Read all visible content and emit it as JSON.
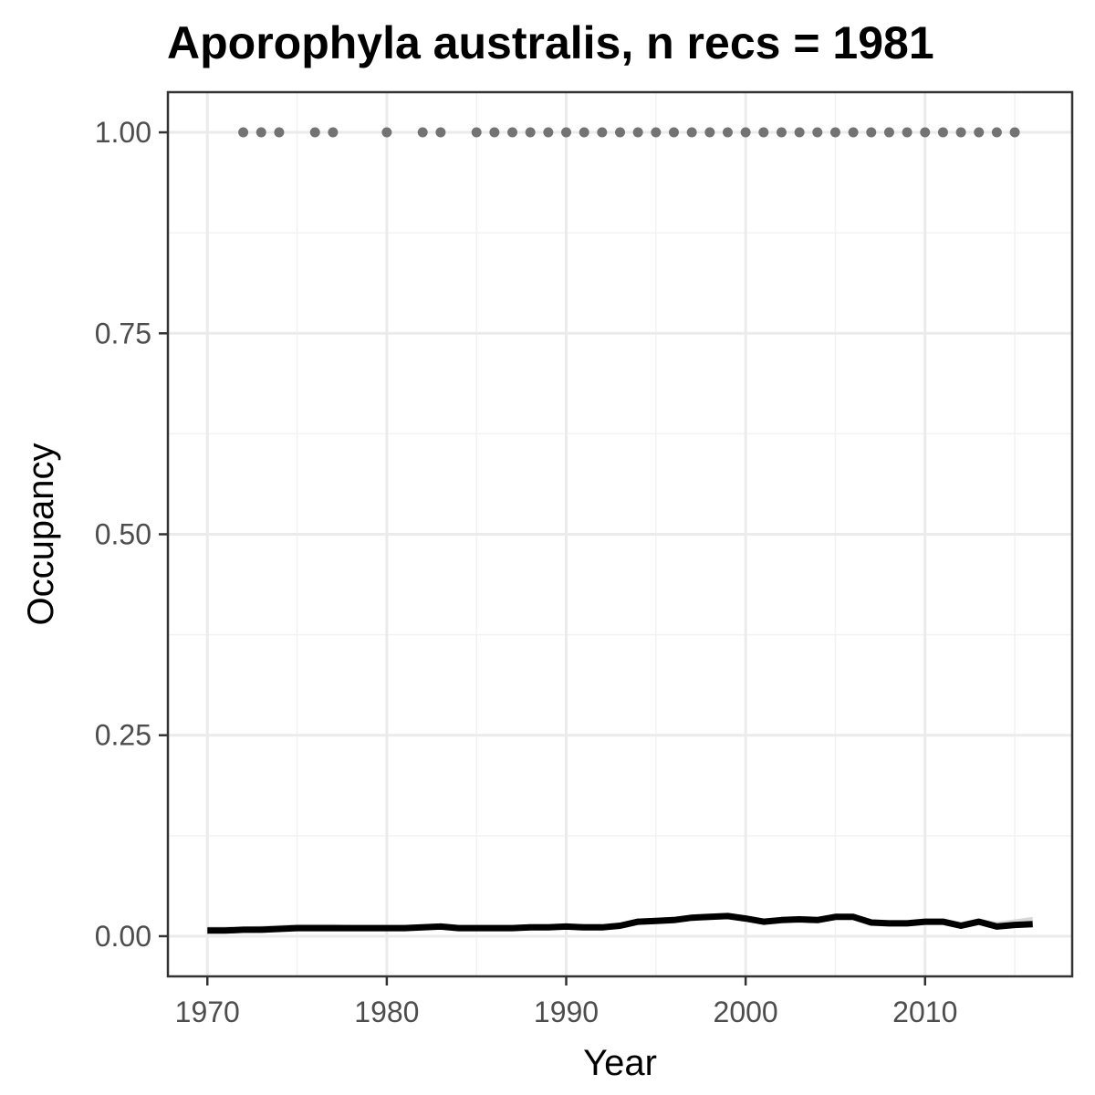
{
  "chart_data": {
    "type": "line",
    "title": "Aporophyla australis, n recs = 1981",
    "xlabel": "Year",
    "ylabel": "Occupancy",
    "xlim": [
      1967.8,
      2018.2
    ],
    "ylim": [
      -0.05,
      1.05
    ],
    "x_ticks": [
      1970,
      1980,
      1990,
      2000,
      2010
    ],
    "x_tick_labels": [
      "1970",
      "1980",
      "1990",
      "2000",
      "2010"
    ],
    "x_minor_ticks": [
      1975,
      1985,
      1995,
      2005,
      2015
    ],
    "y_ticks": [
      0,
      0.25,
      0.5,
      0.75,
      1.0
    ],
    "y_tick_labels": [
      "0.00",
      "0.25",
      "0.50",
      "0.75",
      "1.00"
    ],
    "y_minor_ticks": [
      0.125,
      0.375,
      0.625,
      0.875
    ],
    "grid": true,
    "colors": {
      "line": "#000000",
      "ribbon": "#bebebe",
      "points": "#737373"
    },
    "series": [
      {
        "type": "line",
        "x": [
          1970,
          1971,
          1972,
          1973,
          1974,
          1975,
          1976,
          1977,
          1978,
          1979,
          1980,
          1981,
          1982,
          1983,
          1984,
          1985,
          1986,
          1987,
          1988,
          1989,
          1990,
          1991,
          1992,
          1993,
          1994,
          1995,
          1996,
          1997,
          1998,
          1999,
          2000,
          2001,
          2002,
          2003,
          2004,
          2005,
          2006,
          2007,
          2008,
          2009,
          2010,
          2011,
          2012,
          2013,
          2014,
          2015,
          2016
        ],
        "y": [
          0.007,
          0.007,
          0.008,
          0.008,
          0.009,
          0.01,
          0.01,
          0.01,
          0.01,
          0.01,
          0.01,
          0.01,
          0.011,
          0.012,
          0.01,
          0.01,
          0.01,
          0.01,
          0.011,
          0.011,
          0.012,
          0.011,
          0.011,
          0.013,
          0.018,
          0.019,
          0.02,
          0.023,
          0.024,
          0.025,
          0.022,
          0.018,
          0.02,
          0.021,
          0.02,
          0.024,
          0.024,
          0.017,
          0.016,
          0.016,
          0.018,
          0.018,
          0.013,
          0.018,
          0.012,
          0.014,
          0.015
        ],
        "lower": [
          0.004,
          0.004,
          0.005,
          0.005,
          0.006,
          0.007,
          0.007,
          0.007,
          0.007,
          0.007,
          0.007,
          0.007,
          0.008,
          0.009,
          0.007,
          0.007,
          0.007,
          0.007,
          0.008,
          0.008,
          0.009,
          0.008,
          0.008,
          0.01,
          0.015,
          0.016,
          0.017,
          0.02,
          0.021,
          0.022,
          0.019,
          0.015,
          0.017,
          0.018,
          0.017,
          0.021,
          0.021,
          0.014,
          0.013,
          0.013,
          0.015,
          0.015,
          0.01,
          0.015,
          0.009,
          0.011,
          0.011
        ],
        "upper": [
          0.012,
          0.012,
          0.012,
          0.013,
          0.014,
          0.015,
          0.015,
          0.015,
          0.014,
          0.014,
          0.014,
          0.014,
          0.015,
          0.016,
          0.014,
          0.014,
          0.014,
          0.014,
          0.015,
          0.015,
          0.016,
          0.015,
          0.015,
          0.017,
          0.022,
          0.023,
          0.024,
          0.027,
          0.028,
          0.029,
          0.026,
          0.022,
          0.024,
          0.025,
          0.024,
          0.028,
          0.028,
          0.021,
          0.02,
          0.02,
          0.022,
          0.022,
          0.018,
          0.022,
          0.018,
          0.021,
          0.024
        ]
      },
      {
        "type": "scatter",
        "x": [
          1972,
          1973,
          1974,
          1976,
          1977,
          1980,
          1982,
          1983,
          1985,
          1986,
          1987,
          1988,
          1989,
          1990,
          1991,
          1992,
          1993,
          1994,
          1995,
          1996,
          1997,
          1998,
          1999,
          2000,
          2001,
          2002,
          2003,
          2004,
          2005,
          2006,
          2007,
          2008,
          2009,
          2010,
          2011,
          2012,
          2013,
          2014,
          2015
        ],
        "y": [
          1,
          1,
          1,
          1,
          1,
          1,
          1,
          1,
          1,
          1,
          1,
          1,
          1,
          1,
          1,
          1,
          1,
          1,
          1,
          1,
          1,
          1,
          1,
          1,
          1,
          1,
          1,
          1,
          1,
          1,
          1,
          1,
          1,
          1,
          1,
          1,
          1,
          1,
          1
        ]
      }
    ]
  }
}
